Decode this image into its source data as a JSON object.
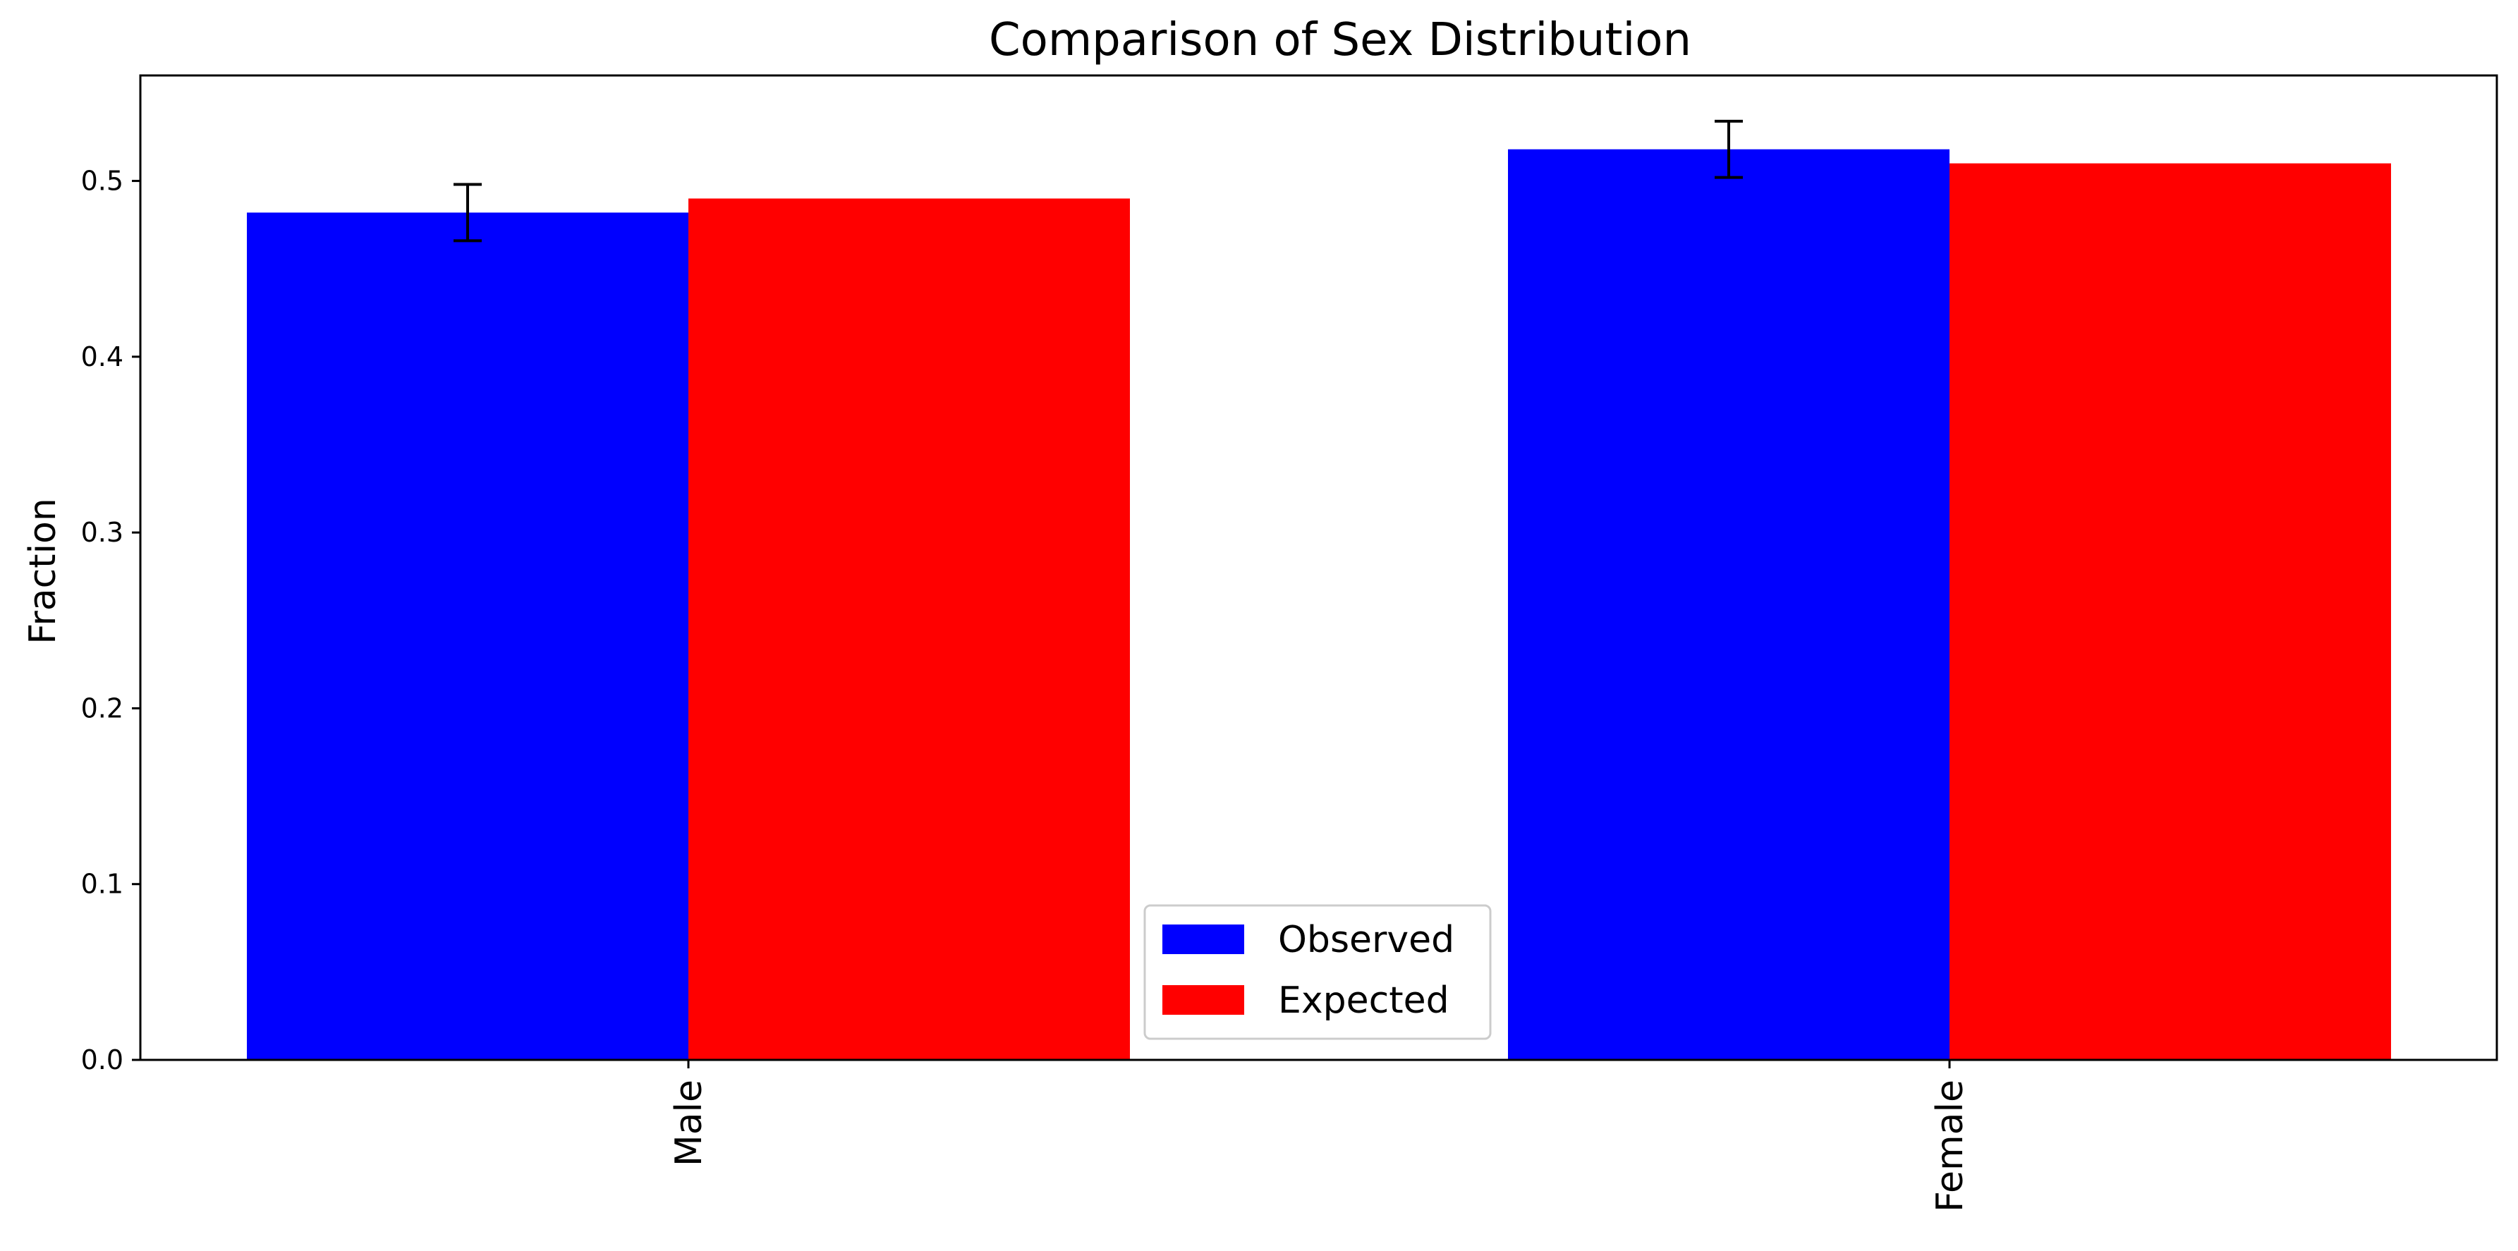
{
  "chart_data": {
    "type": "bar",
    "title": "Comparison of Sex Distribution",
    "xlabel": "",
    "ylabel": "Fraction",
    "categories": [
      "Male",
      "Female"
    ],
    "series": [
      {
        "name": "Observed",
        "color": "#0000ff",
        "values": [
          0.482,
          0.518
        ],
        "error": [
          0.016,
          0.016
        ]
      },
      {
        "name": "Expected",
        "color": "#ff0000",
        "values": [
          0.49,
          0.51
        ]
      }
    ],
    "ylim": [
      0,
      0.56
    ],
    "yticks": [
      0.0,
      0.1,
      0.2,
      0.3,
      0.4,
      0.5
    ],
    "ytick_labels": [
      "0.0",
      "0.1",
      "0.2",
      "0.3",
      "0.4",
      "0.5"
    ],
    "xtick_rotation": "vertical",
    "legend_position": "bottom-center",
    "grid": false
  }
}
